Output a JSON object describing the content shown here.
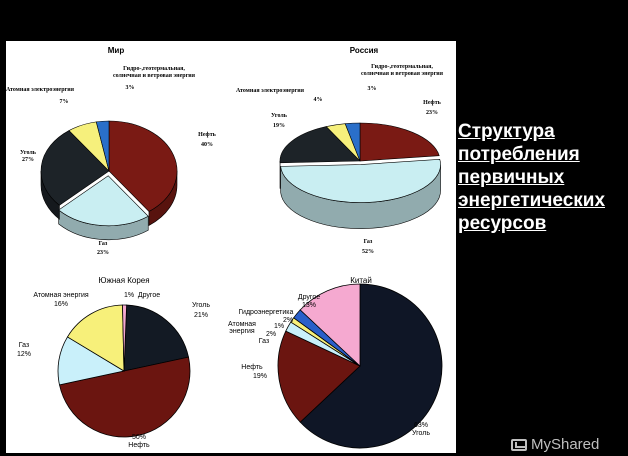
{
  "headline": {
    "lines": [
      "Структура",
      "потребления",
      "первичных",
      "энергетических",
      "ресурсов"
    ]
  },
  "watermark": {
    "text": "MyShared",
    "icon": "presentation-icon"
  },
  "chart_data": [
    {
      "type": "pie",
      "title": "Мир",
      "slices": [
        {
          "name": "Нефть",
          "value": 40,
          "label": "40%",
          "color": "#7a1a14"
        },
        {
          "name": "Газ",
          "value": 23,
          "label": "23%",
          "color": "#c9eef2"
        },
        {
          "name": "Уголь",
          "value": 27,
          "label": "27%",
          "color": "#1d2328"
        },
        {
          "name": "Атомная электроэнергия",
          "value": 7,
          "label": "7%",
          "color": "#f6f07c"
        },
        {
          "name": "Гидро-,геотермальная, солнечная и ветровая энергия",
          "value": 3,
          "label": "3%",
          "color": "#2a6fc9"
        }
      ]
    },
    {
      "type": "pie",
      "title": "Россия",
      "slices": [
        {
          "name": "Нефть",
          "value": 23,
          "label": "23%",
          "color": "#7a1a14"
        },
        {
          "name": "Газ",
          "value": 52,
          "label": "52%",
          "color": "#c9eef2"
        },
        {
          "name": "Уголь",
          "value": 19,
          "label": "19%",
          "color": "#1d2328"
        },
        {
          "name": "Атомная электроэнергия",
          "value": 4,
          "label": "4%",
          "color": "#f6f07c"
        },
        {
          "name": "Гидро-,геотермальная, солнечная и ветровая энергия",
          "value": 3,
          "label": "3%",
          "color": "#2a6fc9"
        }
      ]
    },
    {
      "type": "pie",
      "title": "Южная Корея",
      "slices": [
        {
          "name": "Уголь",
          "value": 21,
          "label": "21%",
          "color": "#131a24"
        },
        {
          "name": "Нефть",
          "value": 50,
          "label": "50%",
          "color": "#6b1510"
        },
        {
          "name": "Газ",
          "value": 12,
          "label": "12%",
          "color": "#c9f0fa"
        },
        {
          "name": "Атомная энергия",
          "value": 16,
          "label": "16%",
          "color": "#f7f07a"
        },
        {
          "name": "Другое",
          "value": 1,
          "label": "1%",
          "color": "#f5a9d0"
        }
      ]
    },
    {
      "type": "pie",
      "title": "Китай",
      "slices": [
        {
          "name": "Уголь",
          "value": 63,
          "label": "63%",
          "color": "#0f1626"
        },
        {
          "name": "Нефть",
          "value": 19,
          "label": "19%",
          "color": "#6b1510"
        },
        {
          "name": "Газ",
          "value": 2,
          "label": "2%",
          "color": "#c9f0fa"
        },
        {
          "name": "Атомная энергия",
          "value": 1,
          "label": "1%",
          "color": "#f7f07a"
        },
        {
          "name": "Гидроэнергетика",
          "value": 2,
          "label": "2%",
          "color": "#2a5fc9"
        },
        {
          "name": "Другое",
          "value": 13,
          "label": "13%",
          "color": "#f5a9d0"
        }
      ]
    }
  ]
}
